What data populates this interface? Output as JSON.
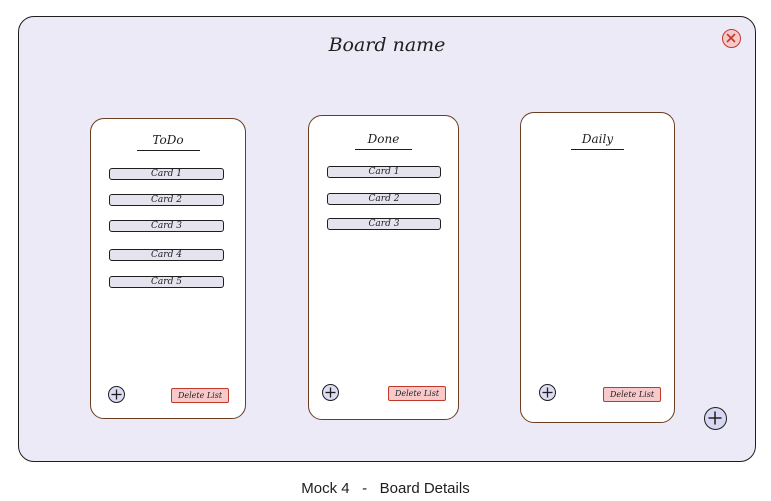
{
  "board": {
    "name": "Board name",
    "lists": [
      {
        "title": "ToDo",
        "cards": [
          "Card 1",
          "Card 2",
          "Card 3",
          "Card 4",
          "Card 5"
        ],
        "delete_label": "Delete List"
      },
      {
        "title": "Done",
        "cards": [
          "Card 1",
          "Card 2",
          "Card 3"
        ],
        "delete_label": "Delete List"
      },
      {
        "title": "Daily",
        "cards": [],
        "delete_label": "Delete List"
      }
    ]
  },
  "icons": {
    "close": "close-icon",
    "add_card": "plus-circle-icon",
    "add_list": "plus-circle-icon"
  },
  "colors": {
    "board_background": "#ebeaf6",
    "close_red": "#c0392b",
    "delete_pink": "#f7c9cb",
    "add_lavender": "#d7d6f3"
  },
  "caption": "Mock 4   -   Board Details"
}
